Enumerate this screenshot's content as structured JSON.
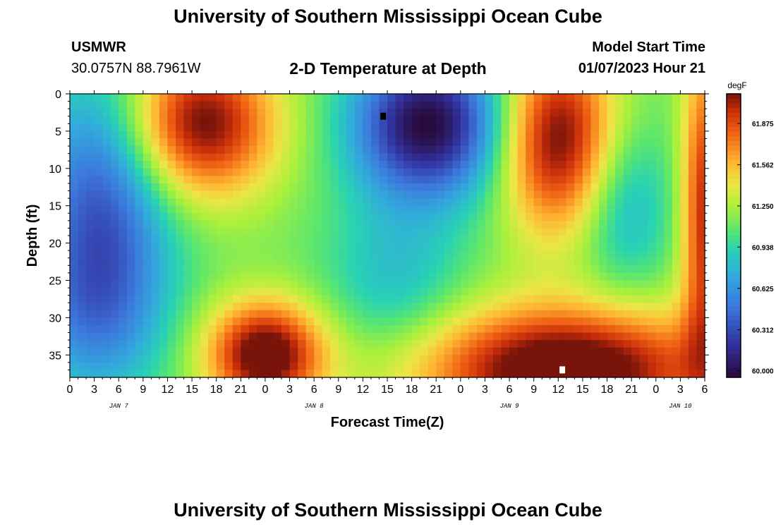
{
  "header": {
    "title": "University of Southern Mississippi Ocean Cube",
    "station_id": "USMWR",
    "station_coords": "30.0757N  88.7961W",
    "plot_title": "2-D Temperature at Depth",
    "model_start_label": "Model Start Time",
    "model_start_value": "01/07/2023 Hour 21"
  },
  "footer": {
    "title": "University of Southern Mississippi Ocean Cube"
  },
  "chart_data": {
    "type": "heatmap",
    "title": "2-D Temperature at Depth",
    "xlabel": "Forecast Time(Z)",
    "ylabel": "Depth (ft)",
    "x_tick_labels": [
      "0",
      "3",
      "6",
      "9",
      "12",
      "15",
      "18",
      "21",
      "0",
      "3",
      "6",
      "9",
      "12",
      "15",
      "18",
      "21",
      "0",
      "3",
      "6",
      "9",
      "12",
      "15",
      "18",
      "21",
      "0",
      "3",
      "6"
    ],
    "date_labels": [
      "JAN 7",
      "JAN 8",
      "JAN 9",
      "JAN 10"
    ],
    "y_tick_labels": [
      "0",
      "5",
      "10",
      "15",
      "20",
      "25",
      "30",
      "35"
    ],
    "y_range": [
      0,
      38
    ],
    "colorbar": {
      "unit": "degF",
      "min": 59.95,
      "max": 62.1,
      "tick_labels": [
        "61.875",
        "61.562",
        "61.250",
        "60.938",
        "60.625",
        "60.312",
        "60.000"
      ],
      "tick_values": [
        61.875,
        61.562,
        61.25,
        60.938,
        60.625,
        60.312,
        60.0
      ],
      "colormap": "turbo"
    },
    "field_features": [
      {
        "kind": "warm",
        "forecast_hour": 16,
        "depth_ft": 4,
        "value_degF": 61.75
      },
      {
        "kind": "cold",
        "forecast_hour": 44,
        "depth_ft": 4,
        "value_degF": 60.0
      },
      {
        "kind": "warm",
        "forecast_hour": 60,
        "depth_ft": 6,
        "value_degF": 61.8
      },
      {
        "kind": "warm",
        "forecast_hour": 24,
        "depth_ft": 35,
        "value_degF": 62.0
      },
      {
        "kind": "warm",
        "forecast_hour": 61,
        "depth_ft": 36,
        "value_degF": 62.1
      },
      {
        "kind": "cold",
        "forecast_hour": 2,
        "depth_ft": 12,
        "value_degF": 60.5
      }
    ],
    "markers": [
      {
        "type": "min",
        "forecast_hour": 38.5,
        "depth_ft": 3,
        "color": "#000000"
      },
      {
        "type": "max",
        "forecast_hour": 60.5,
        "depth_ft": 37,
        "color": "#ffffff"
      }
    ]
  }
}
